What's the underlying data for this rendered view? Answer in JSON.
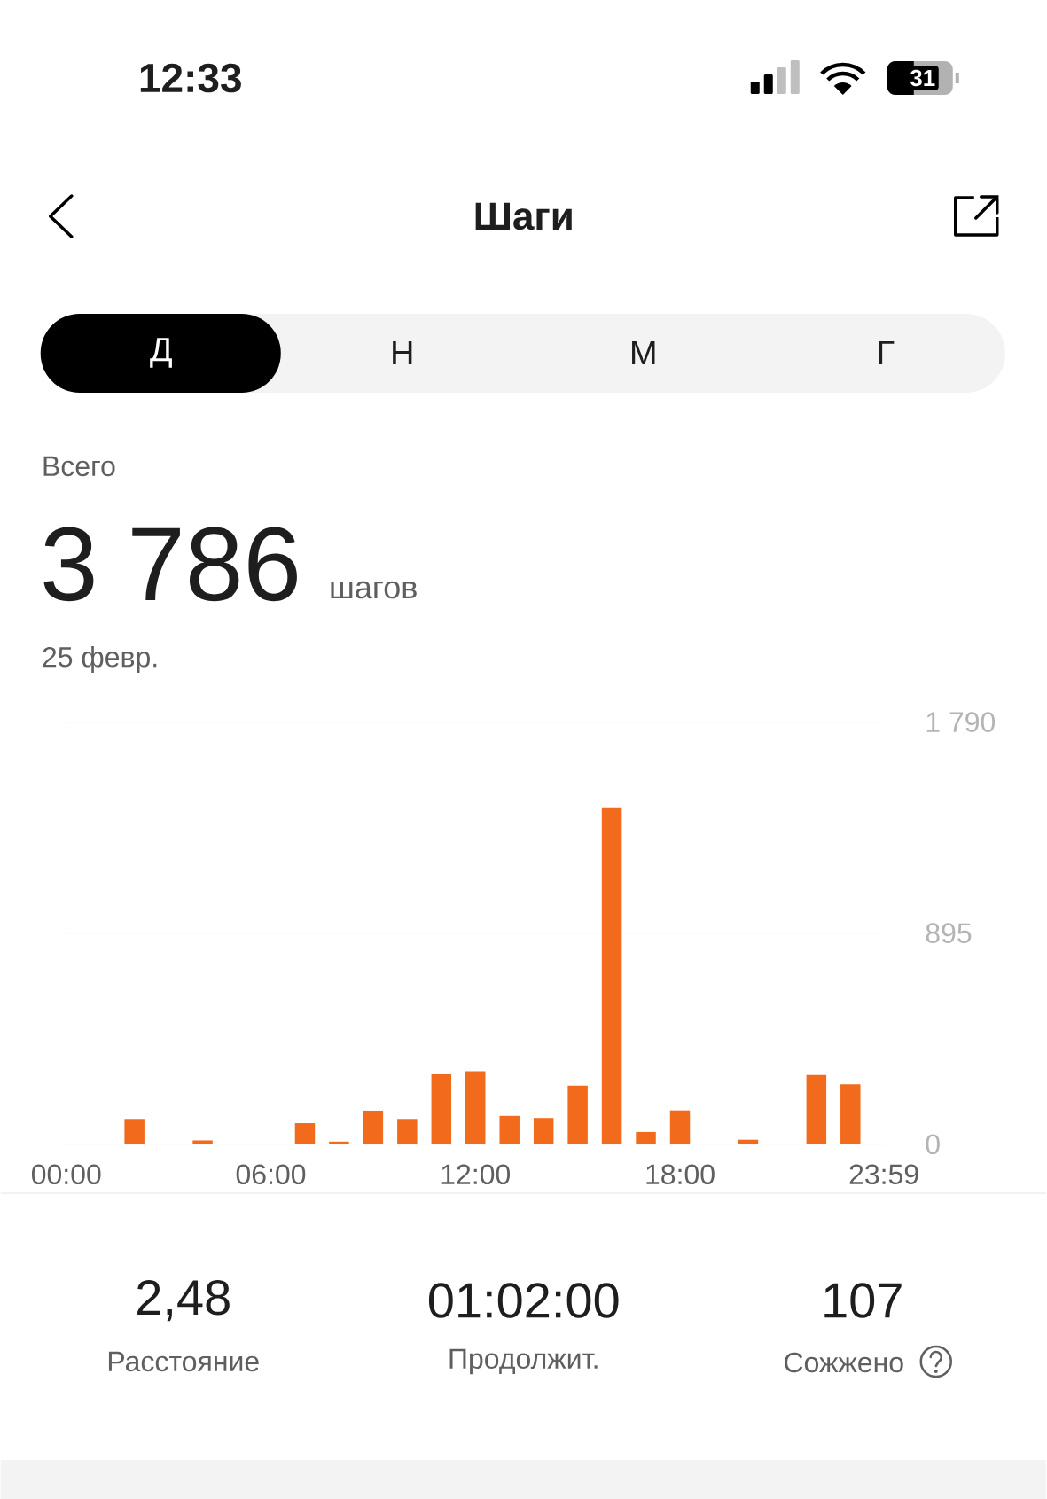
{
  "chart_data": {
    "type": "bar",
    "title": "Шаги",
    "x": [
      2,
      4,
      7,
      8,
      9,
      10,
      11,
      12,
      13,
      14,
      15,
      16,
      17,
      18,
      20,
      22,
      23
    ],
    "values": [
      107,
      16,
      89,
      11,
      142,
      107,
      300,
      309,
      120,
      111,
      248,
      1429,
      52,
      143,
      19,
      293,
      254
    ],
    "color": "#f26b1d",
    "xlim": [
      0,
      24
    ],
    "xticks": [
      {
        "value": 0,
        "label": "00:00"
      },
      {
        "value": 6,
        "label": "06:00"
      },
      {
        "value": 12,
        "label": "12:00"
      },
      {
        "value": 18,
        "label": "18:00"
      },
      {
        "value": 23.983,
        "label": "23:59"
      }
    ],
    "ylim": [
      0,
      1790
    ],
    "yticks": [
      0,
      895,
      {
        "value": 1790,
        "label": "1 790"
      }
    ],
    "grid": "y",
    "annotations": [
      "12:33",
      "31",
      "Д",
      "Н",
      "М",
      "Г",
      "Всего",
      "3 786",
      "шагов",
      "25 февр.",
      "2,48",
      "Расстояние",
      "01:02:00",
      "Продолжит.",
      "107",
      "Сожжено"
    ]
  }
}
